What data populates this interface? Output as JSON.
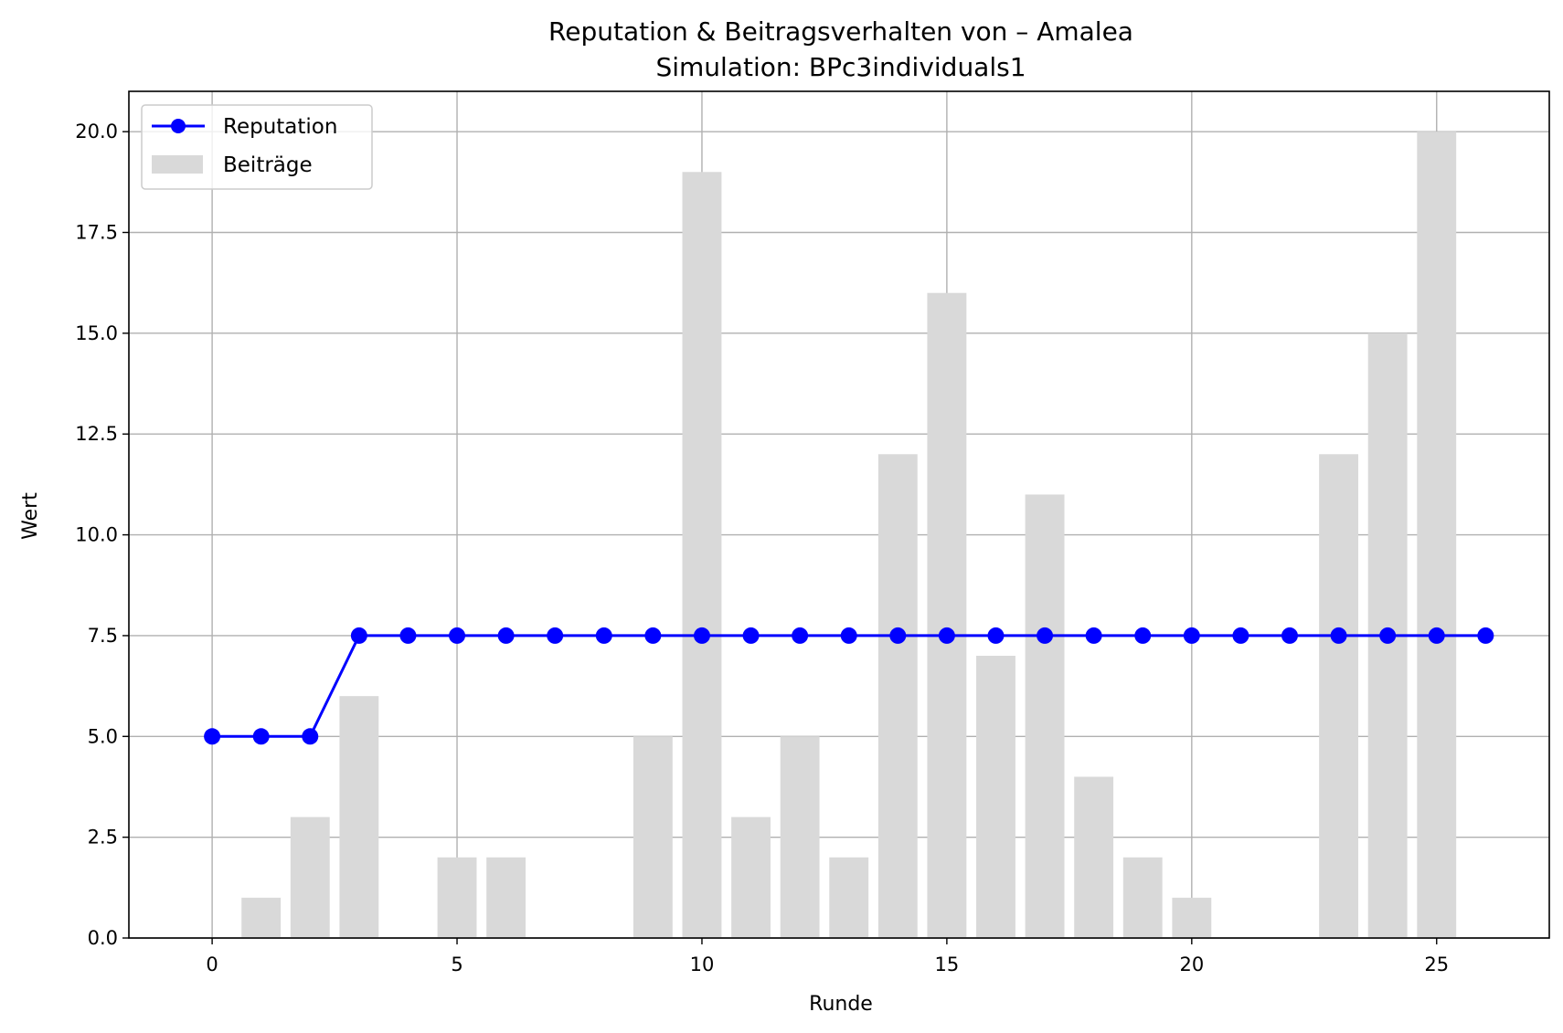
{
  "chart_data": {
    "type": "bar+line",
    "title": "Reputation & Beitragsverhalten von – Amalea",
    "subtitle": "Simulation: BPc3individuals1",
    "xlabel": "Runde",
    "ylabel": "Wert",
    "xlim": [
      -1.7,
      27.3
    ],
    "ylim": [
      0,
      21
    ],
    "xticks": [
      0,
      5,
      10,
      15,
      20,
      25
    ],
    "yticks": [
      0.0,
      2.5,
      5.0,
      7.5,
      10.0,
      12.5,
      15.0,
      17.5,
      20.0
    ],
    "ytick_labels": [
      "0.0",
      "2.5",
      "5.0",
      "7.5",
      "10.0",
      "12.5",
      "15.0",
      "17.5",
      "20.0"
    ],
    "grid": true,
    "legend_position": "top-left",
    "series": [
      {
        "name": "Reputation",
        "kind": "line",
        "marker": "circle",
        "color": "#0000ff",
        "x": [
          0,
          1,
          2,
          3,
          4,
          5,
          6,
          7,
          8,
          9,
          10,
          11,
          12,
          13,
          14,
          15,
          16,
          17,
          18,
          19,
          20,
          21,
          22,
          23,
          24,
          25,
          26
        ],
        "values": [
          5,
          5,
          5,
          7.5,
          7.5,
          7.5,
          7.5,
          7.5,
          7.5,
          7.5,
          7.5,
          7.5,
          7.5,
          7.5,
          7.5,
          7.5,
          7.5,
          7.5,
          7.5,
          7.5,
          7.5,
          7.5,
          7.5,
          7.5,
          7.5,
          7.5,
          7.5
        ]
      },
      {
        "name": "Beiträge",
        "kind": "bar",
        "color": "#d9d9d9",
        "x": [
          0,
          1,
          2,
          3,
          4,
          5,
          6,
          7,
          8,
          9,
          10,
          11,
          12,
          13,
          14,
          15,
          16,
          17,
          18,
          19,
          20,
          21,
          22,
          23,
          24,
          25
        ],
        "values": [
          0,
          1,
          3,
          6,
          0,
          2,
          2,
          0,
          0,
          5,
          19,
          3,
          5,
          2,
          12,
          16,
          7,
          11,
          4,
          2,
          1,
          0,
          0,
          12,
          15,
          20
        ]
      }
    ]
  }
}
